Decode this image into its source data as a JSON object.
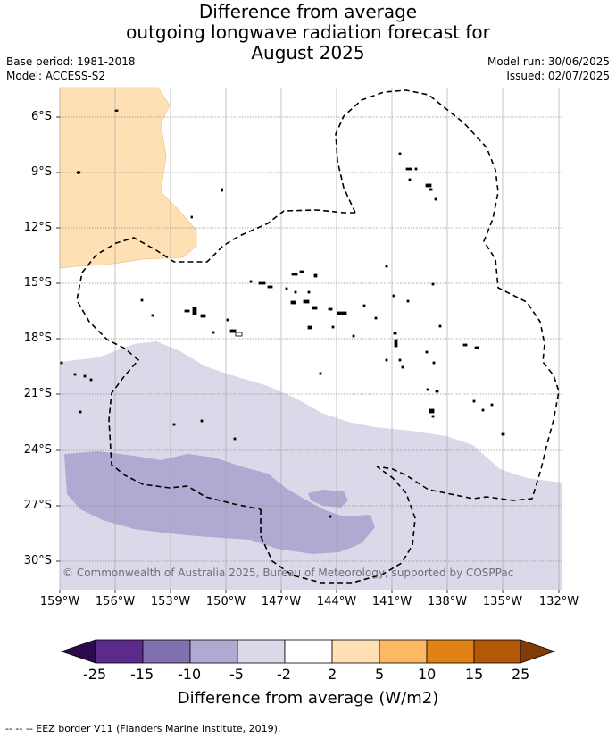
{
  "title": {
    "line1": "Difference from average",
    "line2": "outgoing longwave radiation forecast for",
    "line3": "August 2025"
  },
  "meta": {
    "base_period": "Base period: 1981-2018",
    "model": "Model: ACCESS-S2",
    "model_run": "Model run: 30/06/2025",
    "issued": "Issued: 02/07/2025"
  },
  "axes": {
    "lat_labels": [
      "6°S",
      "9°S",
      "12°S",
      "15°S",
      "18°S",
      "21°S",
      "24°S",
      "27°S",
      "30°S"
    ],
    "lon_labels": [
      "159°W",
      "156°W",
      "153°W",
      "150°W",
      "147°W",
      "144°W",
      "141°W",
      "138°W",
      "135°W",
      "132°W"
    ]
  },
  "copyright": "© Commonwealth of Australia 2025, Bureau of Meteorology, supported by COSPPac",
  "colorbar": {
    "title": "Difference from average (W/m2)",
    "ticks": [
      "-25",
      "-15",
      "-10",
      "-5",
      "-2",
      "2",
      "5",
      "10",
      "15",
      "25"
    ],
    "colors": [
      "#2d0a4e",
      "#5b2a8a",
      "#8070ad",
      "#b1a9d1",
      "#d9d9ea",
      "#ffffff",
      "#fee0b4",
      "#fdb863",
      "#e08214",
      "#b35806",
      "#7f3b08"
    ]
  },
  "footer": "--  --  -- EEZ border V11 (Flanders Marine Institute, 2019).",
  "legend_colors": {
    "positive_light": "#fee0b4",
    "negative_light": "#d9d9ea",
    "negative_medium": "#b1a9d1"
  }
}
